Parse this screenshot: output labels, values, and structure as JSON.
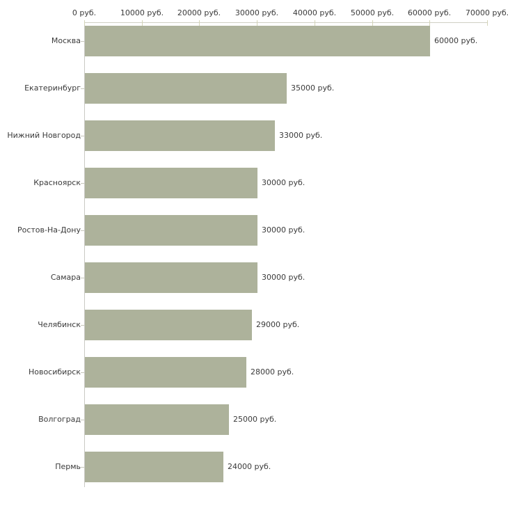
{
  "chart_data": {
    "type": "bar",
    "orientation": "horizontal",
    "title": "",
    "categories": [
      "Москва",
      "Екатеринбург",
      "Нижний Новгород",
      "Красноярск",
      "Ростов-На-Дону",
      "Самара",
      "Челябинск",
      "Новосибирск",
      "Волгоград",
      "Пермь"
    ],
    "values": [
      60000,
      35000,
      33000,
      30000,
      30000,
      30000,
      29000,
      28000,
      25000,
      24000
    ],
    "value_labels": [
      "60000 руб.",
      "35000 руб.",
      "33000 руб.",
      "30000 руб.",
      "30000 руб.",
      "30000 руб.",
      "29000 руб.",
      "28000 руб.",
      "25000 руб.",
      "24000 руб."
    ],
    "unit": "руб.",
    "x_axis": {
      "position": "top",
      "min": 0,
      "max": 70000,
      "tick_step": 10000,
      "tick_labels": [
        "0 руб.",
        "10000 руб.",
        "20000 руб.",
        "30000 руб.",
        "40000 руб.",
        "50000 руб.",
        "60000 руб.",
        "70000 руб."
      ]
    },
    "legend": false,
    "grid": false,
    "colors": {
      "bar_fill": "#adb29b",
      "axis_line": "#cfcfc3",
      "tick_mark": "#d4d4b8",
      "text": "#3a3a3a",
      "background": "#ffffff"
    }
  }
}
